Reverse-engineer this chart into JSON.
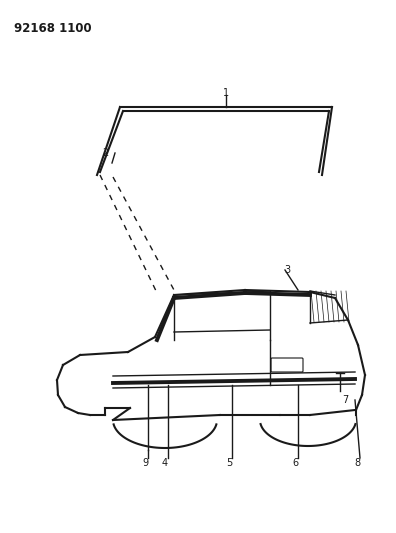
{
  "title_code": "92168 1100",
  "background_color": "#ffffff",
  "line_color": "#1a1a1a",
  "fig_width": 3.96,
  "fig_height": 5.33,
  "dpi": 100
}
